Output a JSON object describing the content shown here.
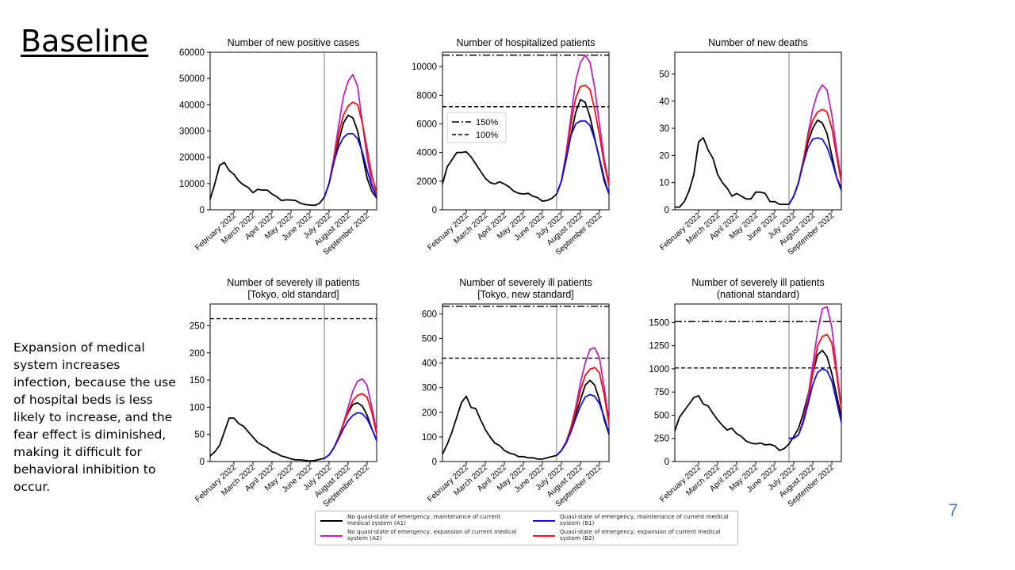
{
  "slide": {
    "title": "Baseline",
    "note": "Expansion of medical system increases infection, because the use of hospital beds is less likely to increase, and the fear effect is diminished, making it difficult for behavioral inhibition to occur.",
    "page_number": "7"
  },
  "colors": {
    "A1": "#000000",
    "A2": "#c020c0",
    "B1": "#1010e0",
    "B2": "#f01010"
  },
  "legend": {
    "items": [
      {
        "key": "A1",
        "color": "#000000",
        "label": "No quasi-state of emergency, maintenance of current medical system (A1)"
      },
      {
        "key": "B1",
        "color": "#1010e0",
        "label": "Quasi-state of emergency, maintenance of current medical system (B1)"
      },
      {
        "key": "A2",
        "color": "#c020c0",
        "label": "No quasi-state of emergency, expansion of current medical system (A2)"
      },
      {
        "key": "B2",
        "color": "#f01010",
        "label": "Quasi-state of emergency, expansion of current medical system (B2)"
      }
    ]
  },
  "chart_data": [
    {
      "type": "line",
      "title": "Number of new positive cases",
      "ylim": [
        0,
        60000
      ],
      "yticks": [
        0,
        10000,
        20000,
        30000,
        40000,
        50000,
        60000
      ],
      "yticklabels": [
        "0",
        "10000",
        "20000",
        "30000",
        "40000",
        "50000",
        "60000"
      ],
      "xticklabels": [
        "February 2022",
        "March 2022",
        "April 2022",
        "May 2022",
        "June 2022",
        "July 2022",
        "August 2022",
        "September 2022"
      ],
      "vline_label": "",
      "hlines": [],
      "series": [
        {
          "key": "A1",
          "values": [
            4000,
            10000,
            17000,
            18000,
            15000,
            13500,
            11000,
            9500,
            8500,
            6500,
            7800,
            7500,
            7500,
            6000,
            5000,
            3500,
            3800,
            3700,
            3500,
            2500,
            2000,
            1800,
            1700,
            2500,
            4800,
            10000,
            18000,
            26000,
            33000,
            36000,
            35000,
            30000,
            21000,
            12000,
            7000,
            4500
          ]
        },
        {
          "key": "A2",
          "start": 24,
          "values": [
            4800,
            10000,
            20000,
            32000,
            43000,
            49000,
            51500,
            47000,
            33000,
            20000,
            10000,
            5500
          ]
        },
        {
          "key": "B2",
          "start": 24,
          "values": [
            4800,
            10000,
            19000,
            29000,
            36000,
            39500,
            41000,
            40000,
            33000,
            23000,
            13000,
            6500
          ]
        },
        {
          "key": "B1",
          "start": 24,
          "values": [
            4800,
            10000,
            18000,
            24000,
            27500,
            29000,
            29000,
            27000,
            22000,
            15000,
            9000,
            5000
          ]
        }
      ]
    },
    {
      "type": "line",
      "title": "Number of hospitalized patients",
      "ylim": [
        0,
        11000
      ],
      "yticks": [
        0,
        2000,
        4000,
        6000,
        8000,
        10000
      ],
      "yticklabels": [
        "0",
        "2000",
        "4000",
        "6000",
        "8000",
        "10000"
      ],
      "xticklabels": [
        "February 2022",
        "March 2022",
        "April 2022",
        "May 2022",
        "June 2022",
        "July 2022",
        "August 2022",
        "September 2022"
      ],
      "hlines": [
        {
          "value": 10800,
          "style": "dashdot",
          "label": "150%"
        },
        {
          "value": 7200,
          "style": "dashed",
          "label": "100%"
        }
      ],
      "series": [
        {
          "key": "A1",
          "values": [
            1800,
            3000,
            3500,
            4000,
            4000,
            4050,
            3700,
            3200,
            2700,
            2200,
            1900,
            1800,
            1950,
            1800,
            1600,
            1300,
            1150,
            1100,
            1150,
            950,
            850,
            600,
            650,
            800,
            1100,
            2000,
            3500,
            5200,
            6800,
            7700,
            7500,
            6500,
            5000,
            3500,
            2000,
            1100
          ]
        },
        {
          "key": "A2",
          "start": 24,
          "values": [
            1100,
            2000,
            4000,
            6500,
            9000,
            10300,
            10800,
            10300,
            8500,
            6000,
            3500,
            1800
          ]
        },
        {
          "key": "B2",
          "start": 24,
          "values": [
            1100,
            2000,
            3800,
            6000,
            7800,
            8600,
            8700,
            8400,
            7000,
            5200,
            3200,
            1700
          ]
        },
        {
          "key": "B1",
          "start": 24,
          "values": [
            1100,
            2000,
            3600,
            5200,
            6000,
            6200,
            6200,
            5900,
            4900,
            3600,
            2200,
            1100
          ]
        }
      ]
    },
    {
      "type": "line",
      "title": "Number of new deaths",
      "ylim": [
        0,
        58
      ],
      "yticks": [
        0,
        10,
        20,
        30,
        40,
        50
      ],
      "yticklabels": [
        "0",
        "10",
        "20",
        "30",
        "40",
        "50"
      ],
      "xticklabels": [
        "February 2022",
        "March 2022",
        "April 2022",
        "May 2022",
        "June 2022",
        "July 2022",
        "August 2022",
        "September 2022"
      ],
      "hlines": [],
      "series": [
        {
          "key": "A1",
          "values": [
            1,
            1,
            3,
            7,
            13,
            25,
            26.5,
            22,
            19,
            13,
            10,
            8,
            5,
            6,
            5,
            4,
            4,
            6.5,
            6.5,
            6,
            3,
            3,
            2,
            2,
            2,
            5,
            10,
            18,
            25,
            30,
            33,
            32,
            28,
            20,
            12,
            8
          ]
        },
        {
          "key": "A2",
          "start": 24,
          "values": [
            2,
            5,
            10,
            18,
            28,
            37,
            43,
            46,
            44,
            35,
            22,
            11
          ]
        },
        {
          "key": "B2",
          "start": 24,
          "values": [
            2,
            5,
            10,
            18,
            27,
            33,
            36,
            37,
            36,
            30,
            20,
            10
          ]
        },
        {
          "key": "B1",
          "start": 24,
          "values": [
            2,
            5,
            10,
            17,
            23,
            26,
            26.5,
            26,
            23,
            18,
            12,
            7
          ]
        }
      ]
    },
    {
      "type": "line",
      "title": "Number of severely ill patients",
      "subtitle": "[Tokyo, old standard]",
      "ylim": [
        0,
        290
      ],
      "yticks": [
        0,
        50,
        100,
        150,
        200,
        250
      ],
      "yticklabels": [
        "0",
        "50",
        "100",
        "150",
        "200",
        "250"
      ],
      "xticklabels": [
        "February 2022",
        "March 2022",
        "April 2022",
        "May 2022",
        "June 2022",
        "July 2022",
        "August 2022",
        "September 2022"
      ],
      "hlines": [
        {
          "value": 263,
          "style": "dashed",
          "label": ""
        }
      ],
      "series": [
        {
          "key": "A1",
          "values": [
            10,
            18,
            30,
            55,
            80,
            80,
            70,
            65,
            55,
            45,
            35,
            30,
            25,
            18,
            15,
            10,
            8,
            5,
            3,
            3,
            2,
            1,
            2,
            4,
            6,
            12,
            25,
            45,
            70,
            90,
            105,
            108,
            102,
            85,
            60,
            40
          ]
        },
        {
          "key": "A2",
          "start": 24,
          "values": [
            6,
            12,
            25,
            45,
            70,
            100,
            130,
            148,
            152,
            140,
            100,
            55
          ]
        },
        {
          "key": "B2",
          "start": 24,
          "values": [
            6,
            12,
            25,
            45,
            68,
            92,
            112,
            122,
            125,
            118,
            90,
            50
          ]
        },
        {
          "key": "B1",
          "start": 24,
          "values": [
            6,
            12,
            25,
            42,
            60,
            75,
            85,
            90,
            88,
            78,
            60,
            38
          ]
        }
      ]
    },
    {
      "type": "line",
      "title": "Number of severely ill patients",
      "subtitle": "[Tokyo, new standard]",
      "ylim": [
        0,
        640
      ],
      "yticks": [
        0,
        100,
        200,
        300,
        400,
        500,
        600
      ],
      "yticklabels": [
        "0",
        "100",
        "200",
        "300",
        "400",
        "500",
        "600"
      ],
      "xticklabels": [
        "February 2022",
        "March 2022",
        "April 2022",
        "May 2022",
        "June 2022",
        "July 2022",
        "August 2022",
        "September 2022"
      ],
      "hlines": [
        {
          "value": 630,
          "style": "dashdot",
          "label": ""
        },
        {
          "value": 420,
          "style": "dashed",
          "label": ""
        }
      ],
      "series": [
        {
          "key": "A1",
          "values": [
            30,
            70,
            120,
            180,
            240,
            265,
            220,
            215,
            170,
            130,
            100,
            75,
            65,
            45,
            35,
            30,
            20,
            20,
            15,
            15,
            10,
            10,
            15,
            20,
            25,
            45,
            80,
            130,
            190,
            250,
            310,
            330,
            310,
            250,
            170,
            110
          ]
        },
        {
          "key": "A2",
          "start": 24,
          "values": [
            25,
            45,
            80,
            140,
            220,
            320,
            400,
            455,
            462,
            420,
            300,
            160
          ]
        },
        {
          "key": "B2",
          "start": 24,
          "values": [
            25,
            45,
            80,
            135,
            205,
            290,
            350,
            375,
            382,
            360,
            270,
            150
          ]
        },
        {
          "key": "B1",
          "start": 24,
          "values": [
            25,
            45,
            75,
            120,
            175,
            225,
            262,
            272,
            265,
            235,
            180,
            115
          ]
        }
      ]
    },
    {
      "type": "line",
      "title": "Number of severely ill patients",
      "subtitle": "(national standard)",
      "ylim": [
        0,
        1700
      ],
      "yticks": [
        0,
        250,
        500,
        750,
        1000,
        1250,
        1500
      ],
      "yticklabels": [
        "0",
        "250",
        "500",
        "750",
        "1000",
        "1250",
        "1500"
      ],
      "xticklabels": [
        "February 2022",
        "March 2022",
        "April 2022",
        "May 2022",
        "June 2022",
        "July 2022",
        "August 2022",
        "September 2022"
      ],
      "hlines": [
        {
          "value": 1510,
          "style": "dashdot",
          "label": ""
        },
        {
          "value": 1010,
          "style": "dashed",
          "label": ""
        }
      ],
      "series": [
        {
          "key": "A1",
          "values": [
            330,
            480,
            550,
            620,
            690,
            710,
            620,
            600,
            520,
            450,
            390,
            340,
            360,
            300,
            270,
            220,
            200,
            190,
            200,
            180,
            185,
            170,
            120,
            140,
            190,
            270,
            360,
            520,
            720,
            950,
            1150,
            1200,
            1130,
            950,
            720,
            480
          ]
        },
        {
          "key": "A2",
          "start": 24,
          "values": [
            250,
            250,
            290,
            450,
            700,
            1050,
            1400,
            1650,
            1670,
            1450,
            1000,
            580
          ]
        },
        {
          "key": "B2",
          "start": 24,
          "values": [
            250,
            250,
            290,
            430,
            650,
            950,
            1250,
            1350,
            1370,
            1280,
            950,
            560
          ]
        },
        {
          "key": "B1",
          "start": 24,
          "values": [
            250,
            250,
            290,
            420,
            620,
            830,
            960,
            1000,
            980,
            870,
            650,
            420
          ]
        }
      ]
    }
  ]
}
